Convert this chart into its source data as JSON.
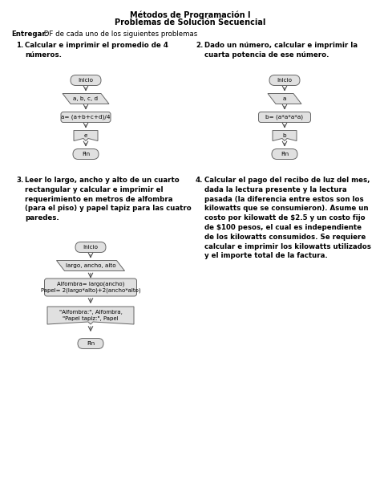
{
  "title1": "Métodos de Programación I",
  "title2": "Problemas de Solución Secuencial",
  "entregar_bold": "Entregar:",
  "entregar_rest": " DF de cada uno de los siguientes problemas",
  "prob1_title": "Calcular e imprimir el promedio de 4\nnúmeros.",
  "prob2_title": "Dado un número, calcular e imprimir la\ncuarta potencia de ese número.",
  "prob3_title": "Leer lo largo, ancho y alto de un cuarto\nrectangular y calcular e imprimir el\nrequerimiento en metros de alfombra\n(para el piso) y papel tapiz para las cuatro\nparedes.",
  "prob4_title": "Calcular el pago del recibo de luz del mes,\ndada la lectura presente y la lectura\npasada (la diferencia entre estos son los\nkilowatts que se consumieron). Asume un\ncosto por kilowatt de $2.5 y un costo fijo\nde $100 pesos, el cual es independiente\nde los kilowatts consumidos. Se requiere\ncalcular e imprimir los kilowatts utilizados\ny el importe total de la factura.",
  "bg_color": "#ffffff",
  "shape_fill": "#e0e0e0",
  "shape_edge": "#666666",
  "text_color": "#000000",
  "arrow_color": "#444444",
  "title_fontsize": 7.0,
  "label_fontsize": 6.0,
  "shape_fontsize": 5.2,
  "prob_fontsize": 6.2
}
